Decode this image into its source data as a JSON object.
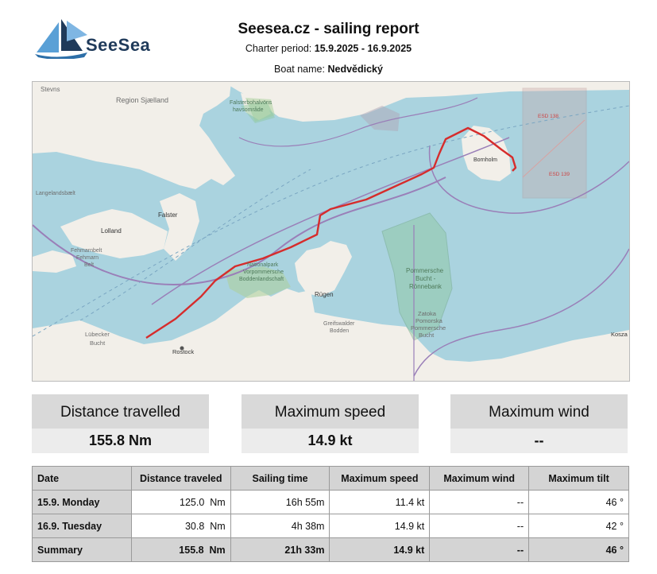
{
  "header": {
    "logo_text": "SeeSea",
    "title": "Seesea.cz - sailing report",
    "charter_label": "Charter period:",
    "charter_period": "15.9.2025 - 16.9.2025",
    "boat_label": "Boat name:",
    "boat_name": "Nedvědický"
  },
  "map": {
    "labels": {
      "stevns": "Stevns",
      "region_sjaelland": "Region Sjælland",
      "falsterbo": "Falsterbohalvöns",
      "havsomrade": "havsområde",
      "bornholm": "Bornholm",
      "esd138": "ESD 138",
      "esd139": "ESD 139",
      "langelandsbaelt": "Langelandsbælt",
      "falster": "Falster",
      "lolland": "Lolland",
      "fehmarn1": "Fehmarnbelt",
      "fehmarn2": "Fehmarn",
      "fehmarn3": "Belt",
      "np1": "Nationalpark",
      "np2": "Vorpommersche",
      "np3": "Boddenlandschaft",
      "rugen": "Rügen",
      "pb1": "Pommersche",
      "pb2": "Bucht -",
      "pb3": "Rönnebank",
      "greifswald1": "Greifswalder",
      "greifswald2": "Bodden",
      "zatoka1": "Zatoka",
      "zatoka2": "Pomorska",
      "zatoka3": "Pommersche",
      "zatoka4": "Bucht",
      "lubeck1": "Lübecker",
      "lubeck2": "Bucht",
      "rostock": "Rostock",
      "koszalin": "Kosza"
    },
    "colors": {
      "sea": "#aad3df",
      "land": "#f2efe9",
      "route": "#d62c2c",
      "boundary": "#9a7fb8"
    }
  },
  "summary_cards": [
    {
      "label": "Distance travelled",
      "value": "155.8 Nm"
    },
    {
      "label": "Maximum speed",
      "value": "14.9 kt"
    },
    {
      "label": "Maximum wind",
      "value": "--"
    }
  ],
  "table": {
    "headers": [
      "Date",
      "Distance traveled",
      "Sailing time",
      "Maximum speed",
      "Maximum wind",
      "Maximum tilt"
    ],
    "rows": [
      {
        "date": "15.9. Monday",
        "distance": "125.0  Nm",
        "time": "16h 55m",
        "speed": "11.4 kt",
        "wind": "--",
        "tilt": "46 °"
      },
      {
        "date": "16.9. Tuesday",
        "distance": "30.8  Nm",
        "time": "4h 38m",
        "speed": "14.9 kt",
        "wind": "--",
        "tilt": "42 °"
      }
    ],
    "summary": {
      "date": "Summary",
      "distance": "155.8  Nm",
      "time": "21h 33m",
      "speed": "14.9 kt",
      "wind": "--",
      "tilt": "46 °"
    }
  }
}
